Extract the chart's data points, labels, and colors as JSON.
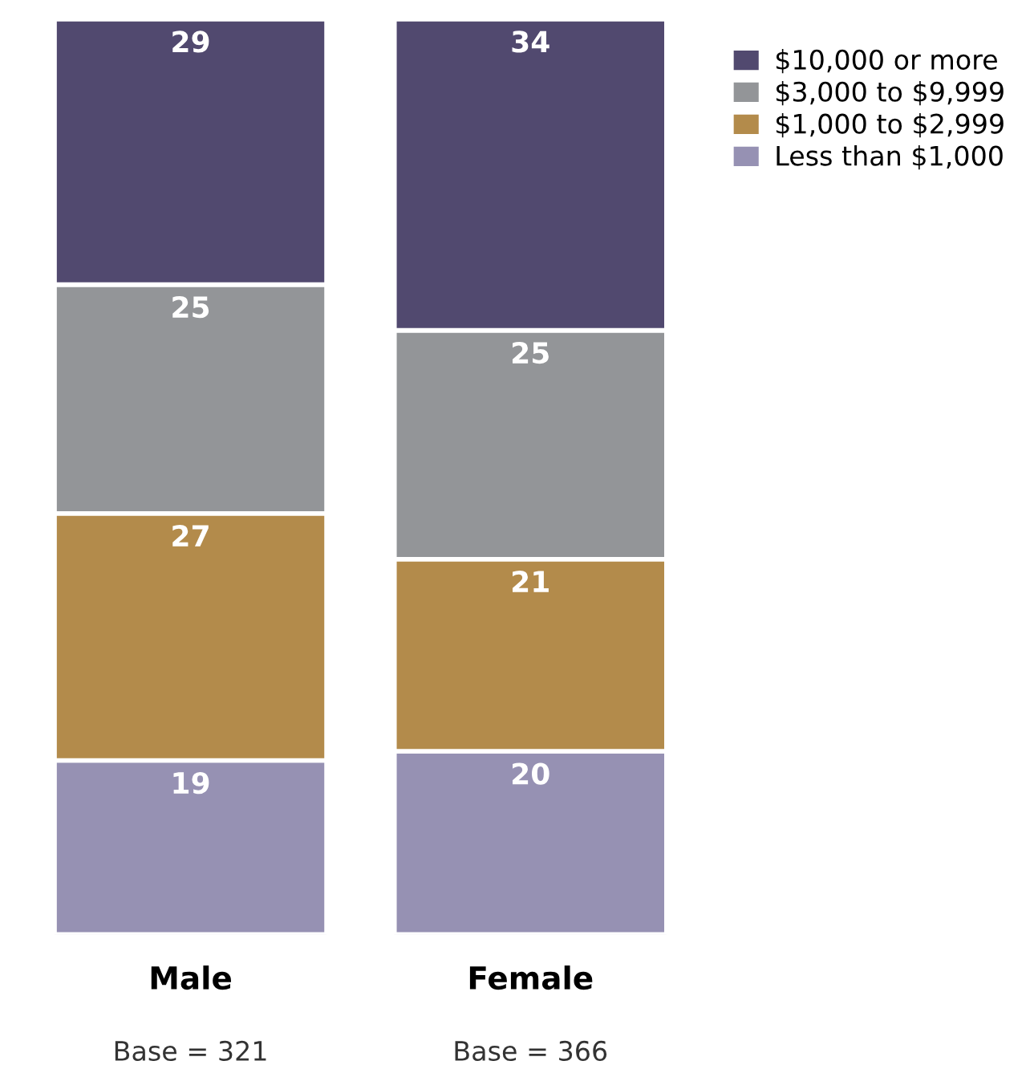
{
  "chart_data": {
    "type": "bar",
    "stacked": true,
    "categories": [
      "Male",
      "Female"
    ],
    "series": [
      {
        "name": "Less than $1,000",
        "color": "#9691b3",
        "values": [
          19,
          20
        ]
      },
      {
        "name": "$1,000 to $2,999",
        "color": "#b38b4b",
        "values": [
          27,
          21
        ]
      },
      {
        "name": "$3,000 to $9,999",
        "color": "#939598",
        "values": [
          25,
          25
        ]
      },
      {
        "name": "$10,000 or more",
        "color": "#51496f",
        "values": [
          29,
          34
        ]
      }
    ],
    "ylim": [
      0,
      100
    ],
    "data_labels": true,
    "legend": "top right",
    "tick_labels": "x",
    "annotations": [
      "Base = 321",
      "Base = 366"
    ]
  }
}
